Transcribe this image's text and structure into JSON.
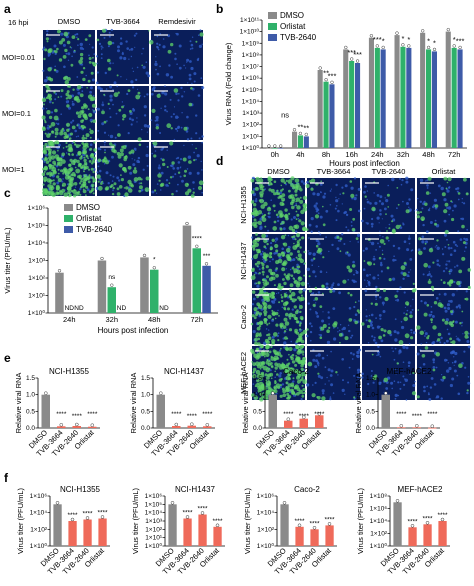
{
  "panels": {
    "a": {
      "label": "a",
      "time": "16 hpi",
      "columns": [
        "DMSO",
        "TVB-3664",
        "Remdesivir"
      ],
      "rows": [
        "MOI=0.01",
        "MOI=0.1",
        "MOI=1"
      ]
    },
    "d": {
      "label": "d",
      "columns": [
        "DMSO",
        "TVB-3664",
        "TVB-2640",
        "Orlistat"
      ],
      "rows": [
        "NCI-H1355",
        "NCI-H1437",
        "Caco-2",
        "MEF-hACE2"
      ]
    },
    "b": {
      "label": "b"
    },
    "c": {
      "label": "c"
    },
    "e": {
      "label": "e"
    },
    "f": {
      "label": "f"
    }
  },
  "colors": {
    "dmso": "#8a8a8a",
    "orlistat": "#2fb16a",
    "tvb2640": "#3e5ba8",
    "red": "#ef6a5a",
    "micro_bg": "#0a1e5a",
    "micro_green": "#5fd46a"
  },
  "chart_data": [
    {
      "id": "b",
      "type": "bar",
      "ylabel": "Virus RNA (Fold change)",
      "xlabel": "Hours post infection",
      "yscale": "log",
      "ylim": [
        1,
        100000000000
      ],
      "yticks": [
        "1×10⁰",
        "1×10¹",
        "1×10²",
        "1×10³",
        "1×10⁴",
        "1×10⁵",
        "1×10⁶",
        "1×10⁷",
        "1×10⁸",
        "1×10⁹",
        "1×10¹⁰",
        "1×10¹¹"
      ],
      "categories": [
        "0h",
        "4h",
        "8h",
        "16h",
        "24h",
        "32h",
        "48h",
        "72h"
      ],
      "legend": [
        "DMSO",
        "Orlistat",
        "TVB-2640"
      ],
      "series": [
        {
          "name": "DMSO",
          "values": [
            1,
            25,
            5000000,
            300000000,
            3000000000,
            5000000000,
            8000000000,
            10000000000
          ]
        },
        {
          "name": "Orlistat",
          "values": [
            1,
            12,
            500000,
            30000000,
            400000000,
            500000000,
            300000000,
            400000000
          ]
        },
        {
          "name": "TVB-2640",
          "values": [
            1,
            10,
            300000,
            20000000,
            300000000,
            400000000,
            200000000,
            300000000
          ]
        }
      ],
      "annotations": [
        "ns",
        "**",
        "**",
        "**",
        "***",
        "***",
        "***",
        "***",
        "*",
        "*",
        "*",
        "*",
        "*",
        "*",
        "***"
      ]
    },
    {
      "id": "c",
      "type": "bar",
      "ylabel": "Virus titer (PFU/mL)",
      "xlabel": "Hours post infection",
      "yscale": "log",
      "ylim": [
        1,
        1000000
      ],
      "yticks": [
        "1×10⁰",
        "1×10¹",
        "1×10²",
        "1×10³",
        "1×10⁴",
        "1×10⁵",
        "1×10⁶"
      ],
      "categories": [
        "24h",
        "32h",
        "48h",
        "72h"
      ],
      "legend": [
        "DMSO",
        "Orlistat",
        "TVB-2640"
      ],
      "series": [
        {
          "name": "DMSO",
          "values": [
            200,
            1000,
            1500,
            100000
          ]
        },
        {
          "name": "Orlistat",
          "values": [
            null,
            30,
            300,
            5000
          ]
        },
        {
          "name": "TVB-2640",
          "values": [
            null,
            null,
            null,
            500
          ]
        }
      ],
      "annotations": [
        "ND",
        "ND",
        "ns",
        "ND",
        "*",
        "ND",
        "****",
        "***"
      ]
    },
    {
      "id": "e",
      "type": "bar",
      "panels": [
        {
          "title": "NCI-H1355",
          "ylabel": "Relative viral RNA",
          "categories": [
            "DMSO",
            "TVB-3664",
            "TVB-2640",
            "Orlistat"
          ],
          "values": [
            1.0,
            0.05,
            0.06,
            0.04
          ],
          "ylim": [
            0,
            1.5
          ],
          "yticks": [
            "0.0",
            "0.5",
            "1.0",
            "1.5"
          ],
          "annotations": [
            "****",
            "****",
            "****"
          ]
        },
        {
          "title": "NCI-H1437",
          "ylabel": "Relative viral RNA",
          "categories": [
            "DMSO",
            "TVB-3664",
            "TVB-2640",
            "Orlistat"
          ],
          "values": [
            1.0,
            0.06,
            0.07,
            0.05
          ],
          "ylim": [
            0,
            1.5
          ],
          "yticks": [
            "0.0",
            "0.5",
            "1.0",
            "1.5"
          ],
          "annotations": [
            "****",
            "****",
            "****"
          ]
        },
        {
          "title": "Caco-2",
          "ylabel": "Relative viral RNA",
          "categories": [
            "DMSO",
            "TVB-3664",
            "TVB-2640",
            "Orlistat"
          ],
          "values": [
            1.0,
            0.22,
            0.28,
            0.38
          ],
          "ylim": [
            0,
            1.5
          ],
          "yticks": [
            "0.0",
            "0.5",
            "1.0",
            "1.5"
          ],
          "annotations": [
            "****",
            "****",
            "****"
          ]
        },
        {
          "title": "MEF-hACE2",
          "ylabel": "Relative viral RNA",
          "categories": [
            "DMSO",
            "TVB-3664",
            "TVB-2640",
            "Orlistat"
          ],
          "values": [
            1.0,
            0.02,
            0.02,
            0.01
          ],
          "ylim": [
            0,
            1.5
          ],
          "yticks": [
            "0.0",
            "0.5",
            "1.0",
            "1.5"
          ],
          "annotations": [
            "****",
            "****",
            "****"
          ]
        }
      ]
    },
    {
      "id": "f",
      "type": "bar",
      "panels": [
        {
          "title": "NCI-H1355",
          "ylabel": "Virus titer (PFU/mL)",
          "ymax_exp": 6,
          "yticks": [
            "1×10⁰",
            "1×10²",
            "1×10⁴",
            "1×10⁶"
          ],
          "categories": [
            "DMSO",
            "TVB-3664",
            "TVB-2640",
            "Orlistat"
          ],
          "values": [
            100000,
            1000,
            1500,
            2000
          ],
          "annotations": [
            "****",
            "****",
            "****"
          ]
        },
        {
          "title": "NCI-H1437",
          "ylabel": "Virus titer (PFU/mL)",
          "ymax_exp": 6,
          "yticks": [
            "1×10⁰",
            "1×10¹",
            "1×10²",
            "1×10³",
            "1×10⁴",
            "1×10⁵",
            "1×10⁶"
          ],
          "categories": [
            "DMSO",
            "TVB-3664",
            "TVB-2640",
            "Orlistat"
          ],
          "values": [
            100000,
            2000,
            6000,
            200
          ],
          "annotations": [
            "****",
            "****",
            "****"
          ]
        },
        {
          "title": "Caco-2",
          "ylabel": "Virus titer (PFU/mL)",
          "ymax_exp": 6,
          "yticks": [
            "1×10⁰",
            "1×10²",
            "1×10⁴",
            "1×10⁶"
          ],
          "categories": [
            "DMSO",
            "TVB-3664",
            "TVB-2640",
            "Orlistat"
          ],
          "values": [
            100000,
            200,
            100,
            300
          ],
          "annotations": [
            "****",
            "****",
            "****"
          ]
        },
        {
          "title": "MEF-hACE2",
          "ylabel": "Virus titer (PFU/mL)",
          "ymax_exp": 8,
          "yticks": [
            "1×10⁰",
            "1×10²",
            "1×10⁴",
            "1×10⁶",
            "1×10⁸"
          ],
          "categories": [
            "DMSO",
            "TVB-3664",
            "TVB-2640",
            "Orlistat"
          ],
          "values": [
            10000000,
            1000,
            3000,
            10000
          ],
          "annotations": [
            "****",
            "****",
            "****"
          ]
        }
      ]
    }
  ]
}
